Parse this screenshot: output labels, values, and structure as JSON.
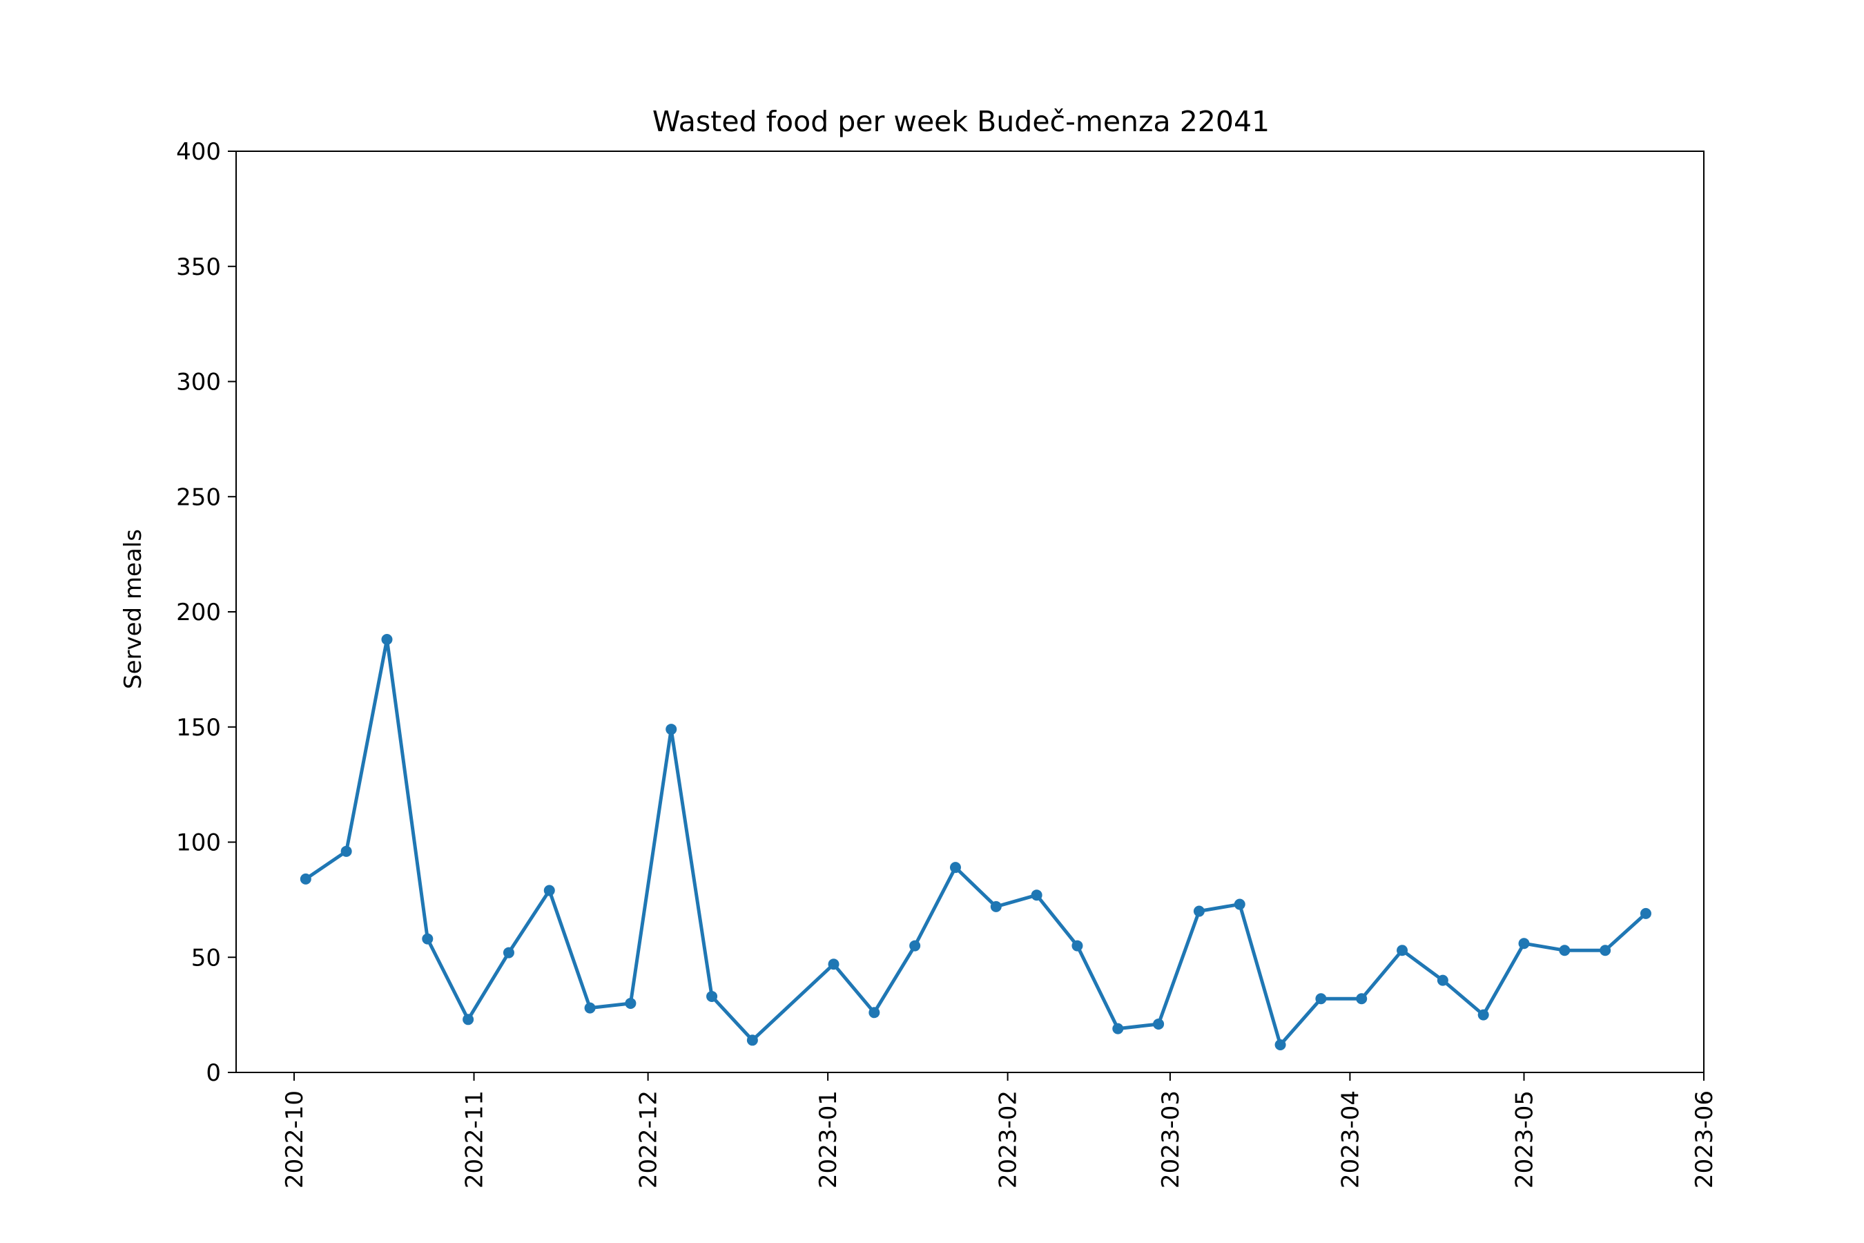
{
  "chart_data": {
    "type": "line",
    "title": "Wasted food per week Budeč-menza 22041",
    "xlabel": "",
    "ylabel": "Served meals",
    "xlim": [
      "2022-09-21",
      "2023-06-01"
    ],
    "ylim": [
      0,
      400
    ],
    "yticks": [
      0,
      50,
      100,
      150,
      200,
      250,
      300,
      350,
      400
    ],
    "xticks": [
      {
        "date": "2022-10-01",
        "label": "2022-10"
      },
      {
        "date": "2022-11-01",
        "label": "2022-11"
      },
      {
        "date": "2022-12-01",
        "label": "2022-12"
      },
      {
        "date": "2023-01-01",
        "label": "2023-01"
      },
      {
        "date": "2023-02-01",
        "label": "2023-02"
      },
      {
        "date": "2023-03-01",
        "label": "2023-03"
      },
      {
        "date": "2023-04-01",
        "label": "2023-04"
      },
      {
        "date": "2023-05-01",
        "label": "2023-05"
      },
      {
        "date": "2023-06-01",
        "label": "2023-06"
      }
    ],
    "grid": false,
    "color": "#1f77b4",
    "series": [
      {
        "x": [
          "2022-10-03",
          "2022-10-10",
          "2022-10-17",
          "2022-10-24",
          "2022-10-31",
          "2022-11-07",
          "2022-11-14",
          "2022-11-21",
          "2022-11-28",
          "2022-12-05",
          "2022-12-12",
          "2022-12-19",
          "2023-01-02",
          "2023-01-09",
          "2023-01-16",
          "2023-01-23",
          "2023-01-30",
          "2023-02-06",
          "2023-02-13",
          "2023-02-20",
          "2023-02-27",
          "2023-03-06",
          "2023-03-13",
          "2023-03-20",
          "2023-03-27",
          "2023-04-03",
          "2023-04-10",
          "2023-04-17",
          "2023-04-24",
          "2023-05-01",
          "2023-05-08",
          "2023-05-15",
          "2023-05-22"
        ],
        "y": [
          84,
          96,
          188,
          58,
          23,
          52,
          79,
          28,
          30,
          149,
          33,
          14,
          47,
          26,
          55,
          89,
          72,
          77,
          55,
          19,
          21,
          70,
          73,
          12,
          32,
          32,
          53,
          40,
          25,
          56,
          53,
          53,
          69
        ]
      }
    ]
  }
}
